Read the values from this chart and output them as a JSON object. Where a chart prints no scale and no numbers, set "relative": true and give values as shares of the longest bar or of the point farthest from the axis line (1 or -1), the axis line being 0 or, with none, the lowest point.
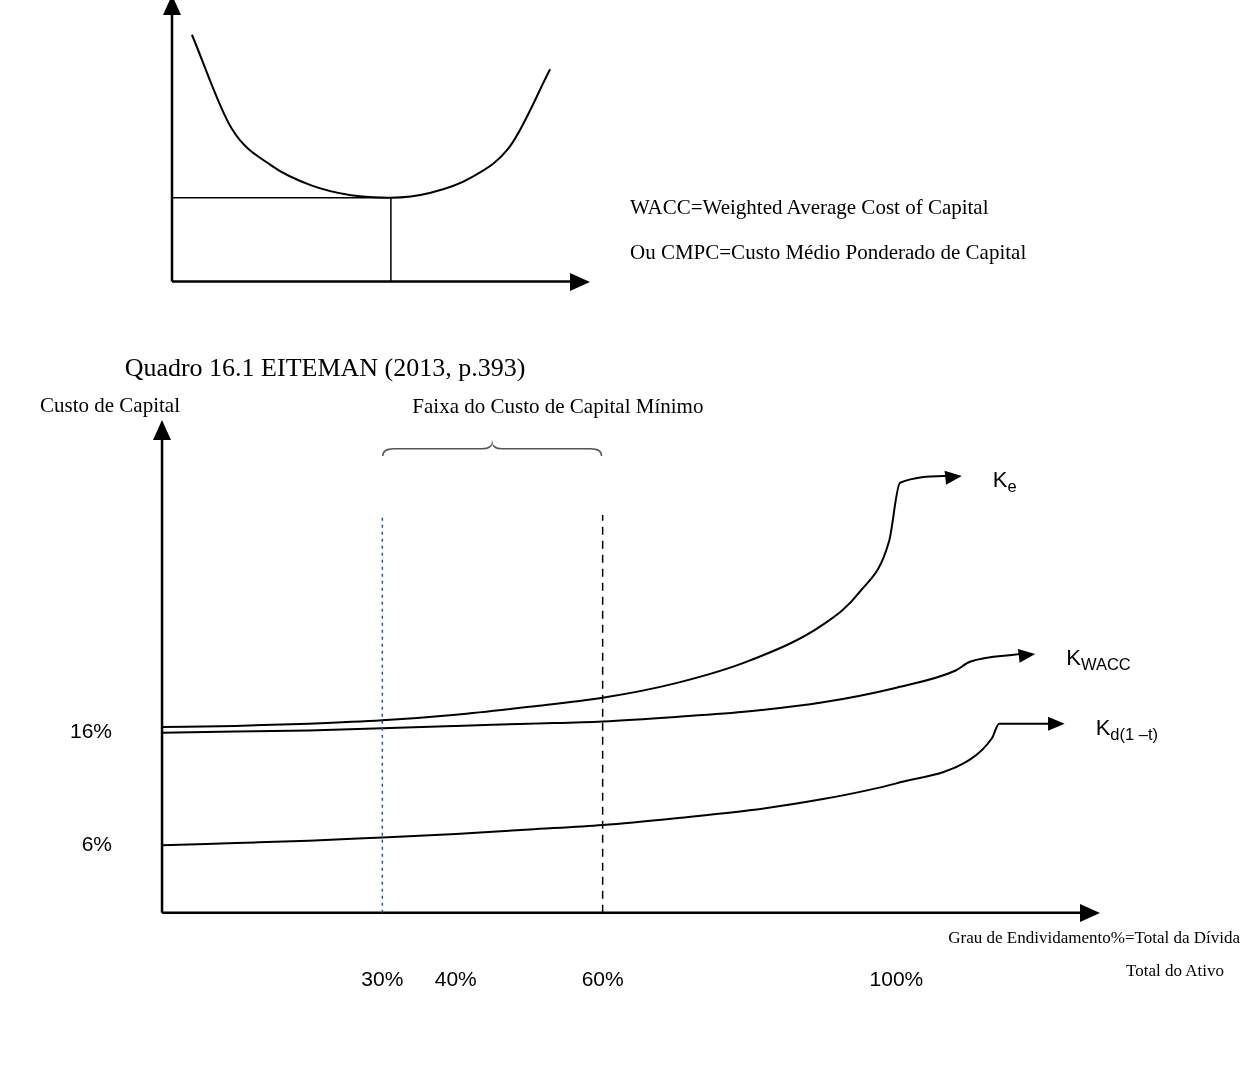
{
  "chart_data": [
    {
      "type": "line",
      "relative": true,
      "categories": [
        null,
        null,
        null,
        null,
        null,
        null,
        null,
        null,
        null,
        null
      ],
      "series": [
        {
          "color": "#000000",
          "values": [
            1.0,
            0.62,
            0.47,
            0.39,
            0.35,
            0.34,
            0.36,
            0.42,
            0.55,
            0.86
          ]
        }
      ],
      "ref_lines": [
        {
          "axis": "y",
          "value": 0.34,
          "color": "#000000"
        }
      ],
      "marker": "none"
    },
    {
      "type": "line",
      "title": "Quadro 16.1 EITEMAN (2013, p.393)",
      "ylabel": "Custo de Capital",
      "xlabel": "Grau de Endividamento%=Total da Dívida",
      "annotations": [
        "Total do Ativo",
        "WACC=Weighted Average Cost of Capital",
        "Ou CMPC=Custo Médio Ponderado de Capital",
        "Faixa do Custo de Capital Mínimo"
      ],
      "xlim": [
        0,
        125
      ],
      "ylim": [
        0,
        42
      ],
      "xticks": [
        {
          "value": 30,
          "label": "30%"
        },
        {
          "value": 40,
          "label": "40%"
        },
        {
          "value": 60,
          "label": "60%"
        },
        {
          "value": 100,
          "label": "100%"
        }
      ],
      "yticks": [
        {
          "value": 6,
          "label": "6%"
        },
        {
          "value": 16,
          "label": "16%"
        }
      ],
      "series": [
        {
          "name": "K$_{e}$",
          "color": "#000000",
          "x": [
            0,
            10,
            20,
            30,
            40,
            50,
            60,
            70,
            80,
            90,
            95,
            99,
            100.5,
            107
          ],
          "values": [
            16.5,
            16.6,
            16.8,
            17.1,
            17.6,
            18.3,
            19.1,
            20.4,
            22.4,
            25.6,
            28.5,
            33,
            38.2,
            38.8
          ]
        },
        {
          "name": "K$_{WACC}$",
          "color": "#000000",
          "x": [
            0,
            10,
            20,
            30,
            40,
            50,
            60,
            70,
            80,
            90,
            100,
            108,
            110,
            117
          ],
          "values": [
            16,
            16.1,
            16.2,
            16.4,
            16.6,
            16.8,
            17,
            17.4,
            17.9,
            18.7,
            20,
            21.5,
            22.3,
            23
          ]
        },
        {
          "name": "K$_{d(1 –t)}$",
          "color": "#000000",
          "x": [
            0,
            10,
            20,
            30,
            40,
            50,
            60,
            70,
            80,
            90,
            100,
            110,
            113,
            114,
            121
          ],
          "values": [
            6,
            6.2,
            6.4,
            6.7,
            7,
            7.4,
            7.8,
            8.4,
            9.1,
            10.1,
            11.5,
            13.6,
            15.5,
            16.8,
            16.8
          ]
        }
      ],
      "ref_lines": [
        {
          "axis": "x",
          "value": 30,
          "color": "#2f5597",
          "line_style": "dotted"
        },
        {
          "axis": "x",
          "value": 60,
          "color": "#000000",
          "line_style": "dashed"
        }
      ],
      "marker": "none"
    }
  ]
}
